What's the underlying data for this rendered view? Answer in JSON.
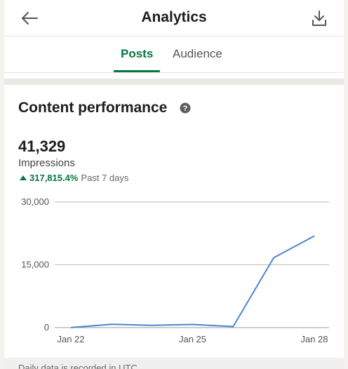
{
  "header": {
    "title": "Analytics",
    "back_icon": "arrow-left-icon",
    "download_icon": "download-icon"
  },
  "tabs": [
    {
      "label": "Posts",
      "active": true
    },
    {
      "label": "Audience",
      "active": false
    }
  ],
  "content": {
    "section_title": "Content performance",
    "help_icon": "help-circle-icon",
    "metric_value": "41,329",
    "metric_label": "Impressions",
    "trend_percent": "317,815.4%",
    "trend_period": "Past 7 days",
    "trend_color": "#057642",
    "footer_note": "Daily data is recorded in UTC"
  },
  "chart_data": {
    "type": "line",
    "x": [
      "Jan 22",
      "Jan 23",
      "Jan 24",
      "Jan 25",
      "Jan 26",
      "Jan 27",
      "Jan 28"
    ],
    "x_tick_labels": [
      "Jan 22",
      "Jan 25",
      "Jan 28"
    ],
    "series": [
      {
        "values": [
          13,
          800,
          550,
          750,
          250,
          16700,
          21900
        ],
        "color": "#4a86cf"
      }
    ],
    "y_ticks": [
      0,
      15000,
      30000
    ],
    "y_tick_labels": [
      "0",
      "15,000",
      "30,000"
    ],
    "ylim": [
      0,
      30000
    ],
    "grid": "horizontal"
  }
}
